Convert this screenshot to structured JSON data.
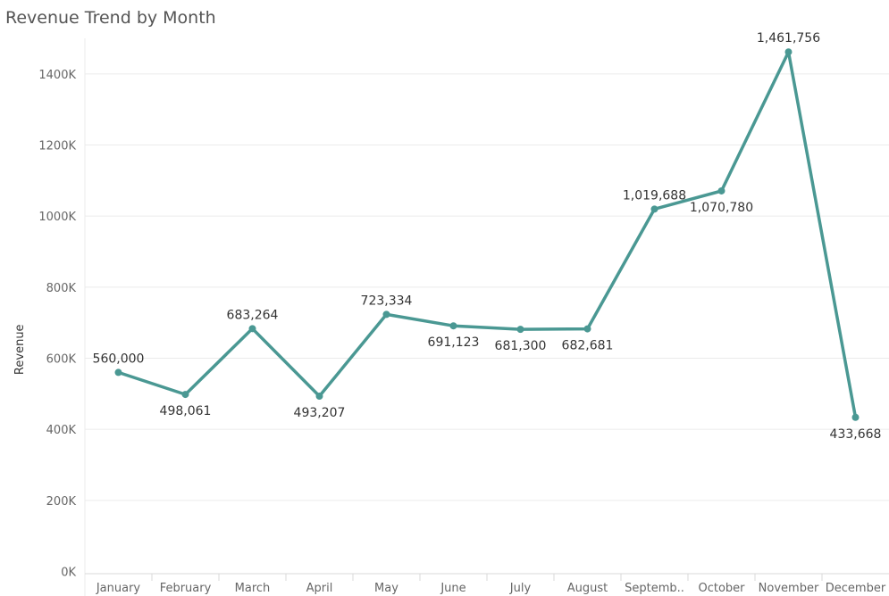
{
  "chart_data": {
    "type": "line",
    "title": "Revenue Trend by Month",
    "xlabel": "",
    "ylabel": "Revenue",
    "categories": [
      "January",
      "February",
      "March",
      "April",
      "May",
      "June",
      "July",
      "August",
      "Septemb..",
      "October",
      "November",
      "December"
    ],
    "series": [
      {
        "values": [
          560000,
          498061,
          683264,
          493207,
          723334,
          691123,
          681300,
          682681,
          1019688,
          1070780,
          1461756,
          433668
        ],
        "labels": [
          "560,000",
          "498,061",
          "683,264",
          "493,207",
          "723,334",
          "691,123",
          "681,300",
          "682,681",
          "1,019,688",
          "1,070,780",
          "1,461,756",
          "433,668"
        ]
      }
    ],
    "ylim": [
      0,
      1500000
    ],
    "yticks": [
      0,
      200000,
      400000,
      600000,
      800000,
      1000000,
      1200000,
      1400000
    ],
    "ytick_labels": [
      "0K",
      "200K",
      "400K",
      "600K",
      "800K",
      "1000K",
      "1200K",
      "1400K"
    ],
    "label_positions": [
      "above",
      "below",
      "above",
      "below",
      "above",
      "below",
      "below",
      "below",
      "above",
      "below",
      "above",
      "below"
    ],
    "grid": true,
    "colors": {
      "line": "#4a9893",
      "grid": "#ebebeb",
      "axis": "#d9d9d9"
    }
  }
}
